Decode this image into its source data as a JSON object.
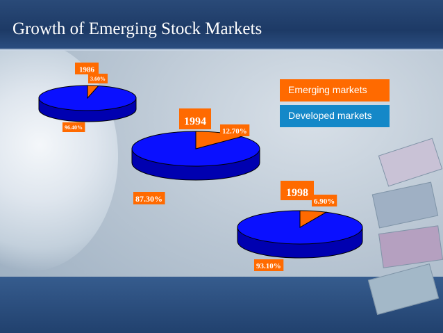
{
  "slide": {
    "title": "Growth of Emerging Stock Markets"
  },
  "colors": {
    "emerging": "#ff6a00",
    "developed": "#0a10ff",
    "developed_side": "#0000b0",
    "legend_developed": "#1488c8"
  },
  "legend": {
    "items": [
      {
        "label": "Emerging markets"
      },
      {
        "label": "Developed markets"
      }
    ]
  },
  "chart_data": {
    "type": "pie",
    "series_names": [
      "Emerging markets",
      "Developed markets"
    ],
    "charts": [
      {
        "year": "1986",
        "emerging": 3.6,
        "developed": 96.4,
        "emerging_label": "3.60%",
        "developed_label": "96.40%"
      },
      {
        "year": "1994",
        "emerging": 12.7,
        "developed": 87.3,
        "emerging_label": "12.70%",
        "developed_label": "87.30%"
      },
      {
        "year": "1998",
        "emerging": 6.9,
        "developed": 93.1,
        "emerging_label": "6.90%",
        "developed_label": "93.10%"
      }
    ]
  }
}
